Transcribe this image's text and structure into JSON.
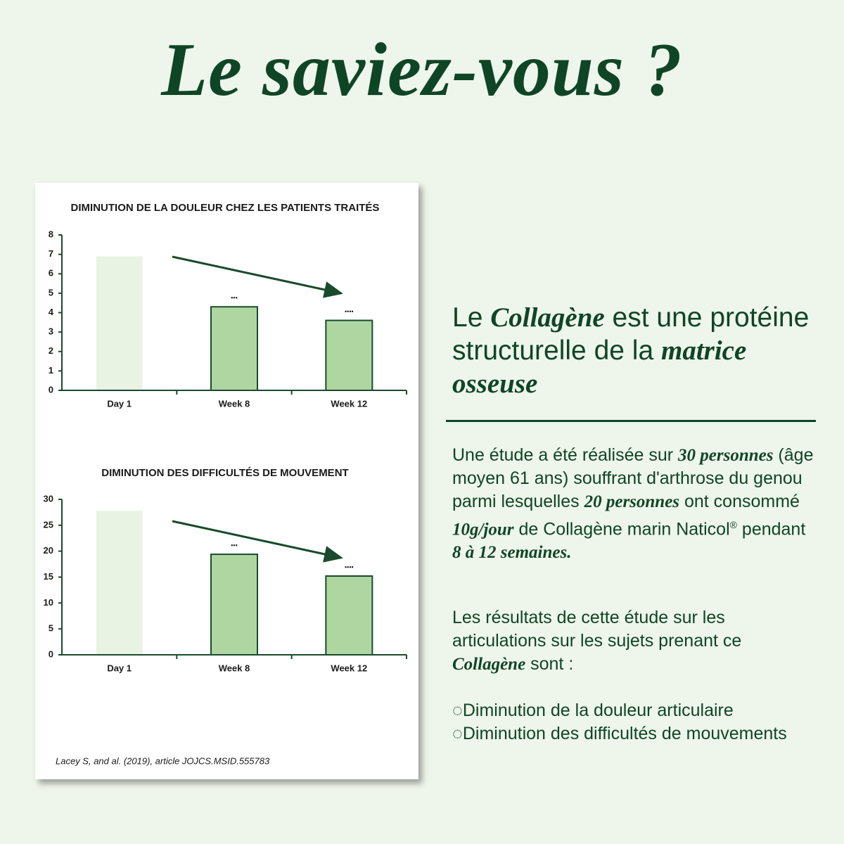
{
  "header": {
    "title": "Le saviez-vous ?"
  },
  "chart_data": [
    {
      "type": "bar",
      "title": "DIMINUTION DE LA DOULEUR CHEZ LES PATIENTS TRAITÉS",
      "categories": [
        "Day 1",
        "Week 8",
        "Week 12"
      ],
      "values": [
        6.9,
        4.3,
        3.6
      ],
      "colors": [
        "#e9f3e4",
        "#afd6a0",
        "#afd6a0"
      ],
      "annotations": [
        null,
        "•••",
        "••••"
      ],
      "ylim": [
        0,
        8
      ],
      "yticks": [
        0,
        1,
        2,
        3,
        4,
        5,
        6,
        7,
        8
      ]
    },
    {
      "type": "bar",
      "title": "DIMINUTION DES DIFFICULTÉS DE MOUVEMENT",
      "categories": [
        "Day 1",
        "Week 8",
        "Week 12"
      ],
      "values": [
        27.8,
        19.4,
        15.2
      ],
      "colors": [
        "#e9f3e4",
        "#afd6a0",
        "#afd6a0"
      ],
      "annotations": [
        null,
        "•••",
        "••••"
      ],
      "ylim": [
        0,
        30
      ],
      "yticks": [
        0,
        5,
        10,
        15,
        20,
        25,
        30
      ]
    }
  ],
  "citation": "Lacey S, and al. (2019), article JOJCS.MSID.555783",
  "intro": [
    "Le ",
    "Collagène",
    " est une protéine structurelle de la ",
    "matrice osseuse"
  ],
  "study": [
    "Une étude a été réalisée sur ",
    "30 personnes",
    " (âge moyen 61 ans) souffrant d'arthrose du genou parmi lesquelles ",
    "20 personnes",
    " ont consommé ",
    "10g/jour",
    " de Collagène marin Naticol",
    "®",
    " pendant ",
    "8 à 12 semaines."
  ],
  "results": [
    "Les résultats de cette étude sur les articulations sur les sujets prenant ce ",
    "Collagène",
    " sont :"
  ],
  "list": [
    "◌Diminution de la douleur articulaire",
    "◌Diminution des difficultés de mouvements"
  ]
}
